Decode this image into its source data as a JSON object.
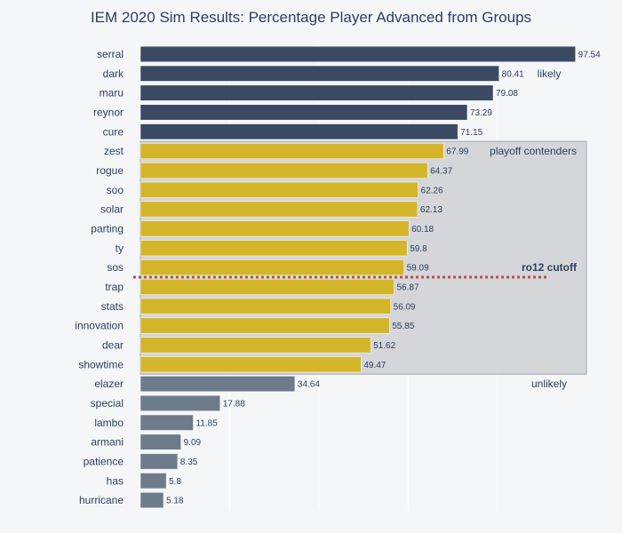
{
  "chart_data": {
    "type": "bar",
    "orientation": "horizontal",
    "title": "IEM 2020 Sim Results: Percentage Player Advanced from Groups",
    "xlabel": "",
    "ylabel": "",
    "xlim": [
      0,
      100
    ],
    "grid": true,
    "categories": [
      "serral",
      "dark",
      "maru",
      "reynor",
      "cure",
      "zest",
      "rogue",
      "soo",
      "solar",
      "parting",
      "ty",
      "sos",
      "trap",
      "stats",
      "innovation",
      "dear",
      "showtime",
      "elazer",
      "special",
      "lambo",
      "armani",
      "patience",
      "has",
      "hurricane"
    ],
    "values": [
      97.54,
      80.41,
      79.08,
      73.29,
      71.15,
      67.99,
      64.37,
      62.26,
      62.13,
      60.18,
      59.8,
      59.09,
      56.87,
      56.09,
      55.85,
      51.62,
      49.47,
      34.64,
      17.88,
      11.85,
      9.09,
      8.35,
      5.8,
      5.18
    ],
    "value_labels": [
      "97.54",
      "80.41",
      "79.08",
      "73.29",
      "71.15",
      "67.99",
      "64.37",
      "62.26",
      "62.13",
      "60.18",
      "59.8",
      "59.09",
      "56.87",
      "56.09",
      "55.85",
      "51.62",
      "49.47",
      "34.64",
      "17.88",
      "11.85",
      "9.09",
      "8.35",
      "5.8",
      "5.18"
    ],
    "groups": {
      "likely": {
        "label": "likely",
        "color": "#3b4a63",
        "players": [
          "serral",
          "dark",
          "maru",
          "reynor",
          "cure"
        ]
      },
      "contenders": {
        "label": "playoff contenders",
        "color": "#d4b52a",
        "players": [
          "zest",
          "rogue",
          "soo",
          "solar",
          "parting",
          "ty",
          "sos",
          "trap",
          "stats",
          "innovation",
          "dear",
          "showtime"
        ]
      },
      "unlikely": {
        "label": "unlikely",
        "color": "#6e7b8b",
        "players": [
          "elazer",
          "special",
          "lambo",
          "armani",
          "patience",
          "has",
          "hurricane"
        ]
      }
    },
    "contender_region_color": "#cfd0d3",
    "cutoff": {
      "label": "ro12 cutoff",
      "between": [
        "sos",
        "trap"
      ],
      "color": "#b5534f"
    }
  }
}
